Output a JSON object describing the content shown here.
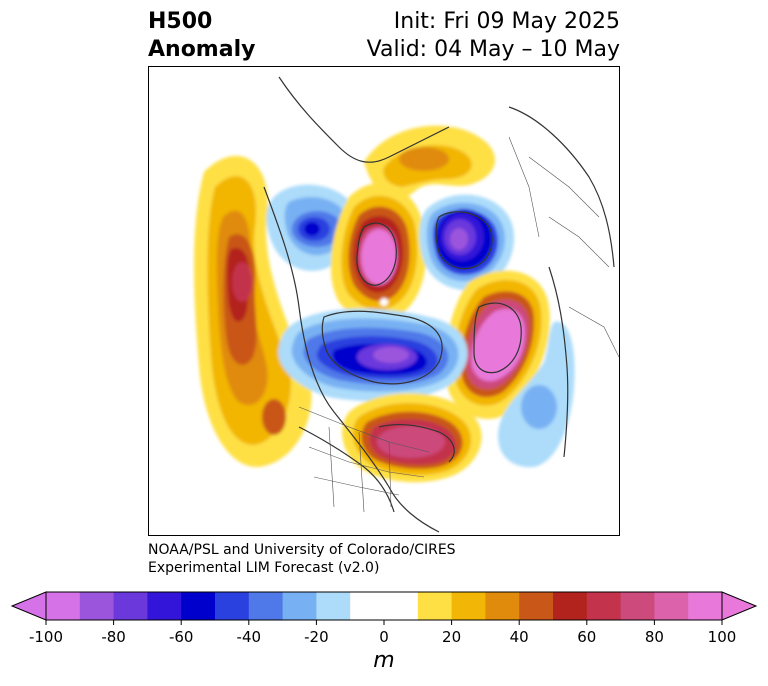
{
  "header": {
    "title_line1": "H500",
    "title_line2": "Anomaly",
    "init_text": "Init: Fri 09 May 2025",
    "valid_text": "Valid: 04 May – 10 May"
  },
  "credit": {
    "line1": "NOAA/PSL and University of Colorado/CIRES",
    "line2": "Experimental LIM Forecast (v2.0)"
  },
  "colorbar": {
    "units": "m",
    "ticks": [
      "-100",
      "-80",
      "-60",
      "-40",
      "-20",
      "0",
      "20",
      "40",
      "60",
      "80",
      "100"
    ],
    "colors": [
      "#d672e8",
      "#9b55dd",
      "#6b38dc",
      "#3215d8",
      "#0000cc",
      "#2a41df",
      "#4f78e8",
      "#78b1f3",
      "#acdcfa",
      "#ffffff",
      "#ffffff",
      "#fee044",
      "#f2b606",
      "#e08b0c",
      "#c95717",
      "#b3231e",
      "#c3334c",
      "#cc4a7c",
      "#dc62ac",
      "#e878d9"
    ]
  },
  "colors": {
    "neg_extreme": "#d672e8",
    "neg_strong": "#3215d8",
    "neg_mid": "#4f78e8",
    "neg_weak": "#acdcfa",
    "pos_weak": "#fee044",
    "pos_mid": "#e08b0c",
    "pos_strong": "#b3231e",
    "pos_extreme": "#e878d9"
  }
}
